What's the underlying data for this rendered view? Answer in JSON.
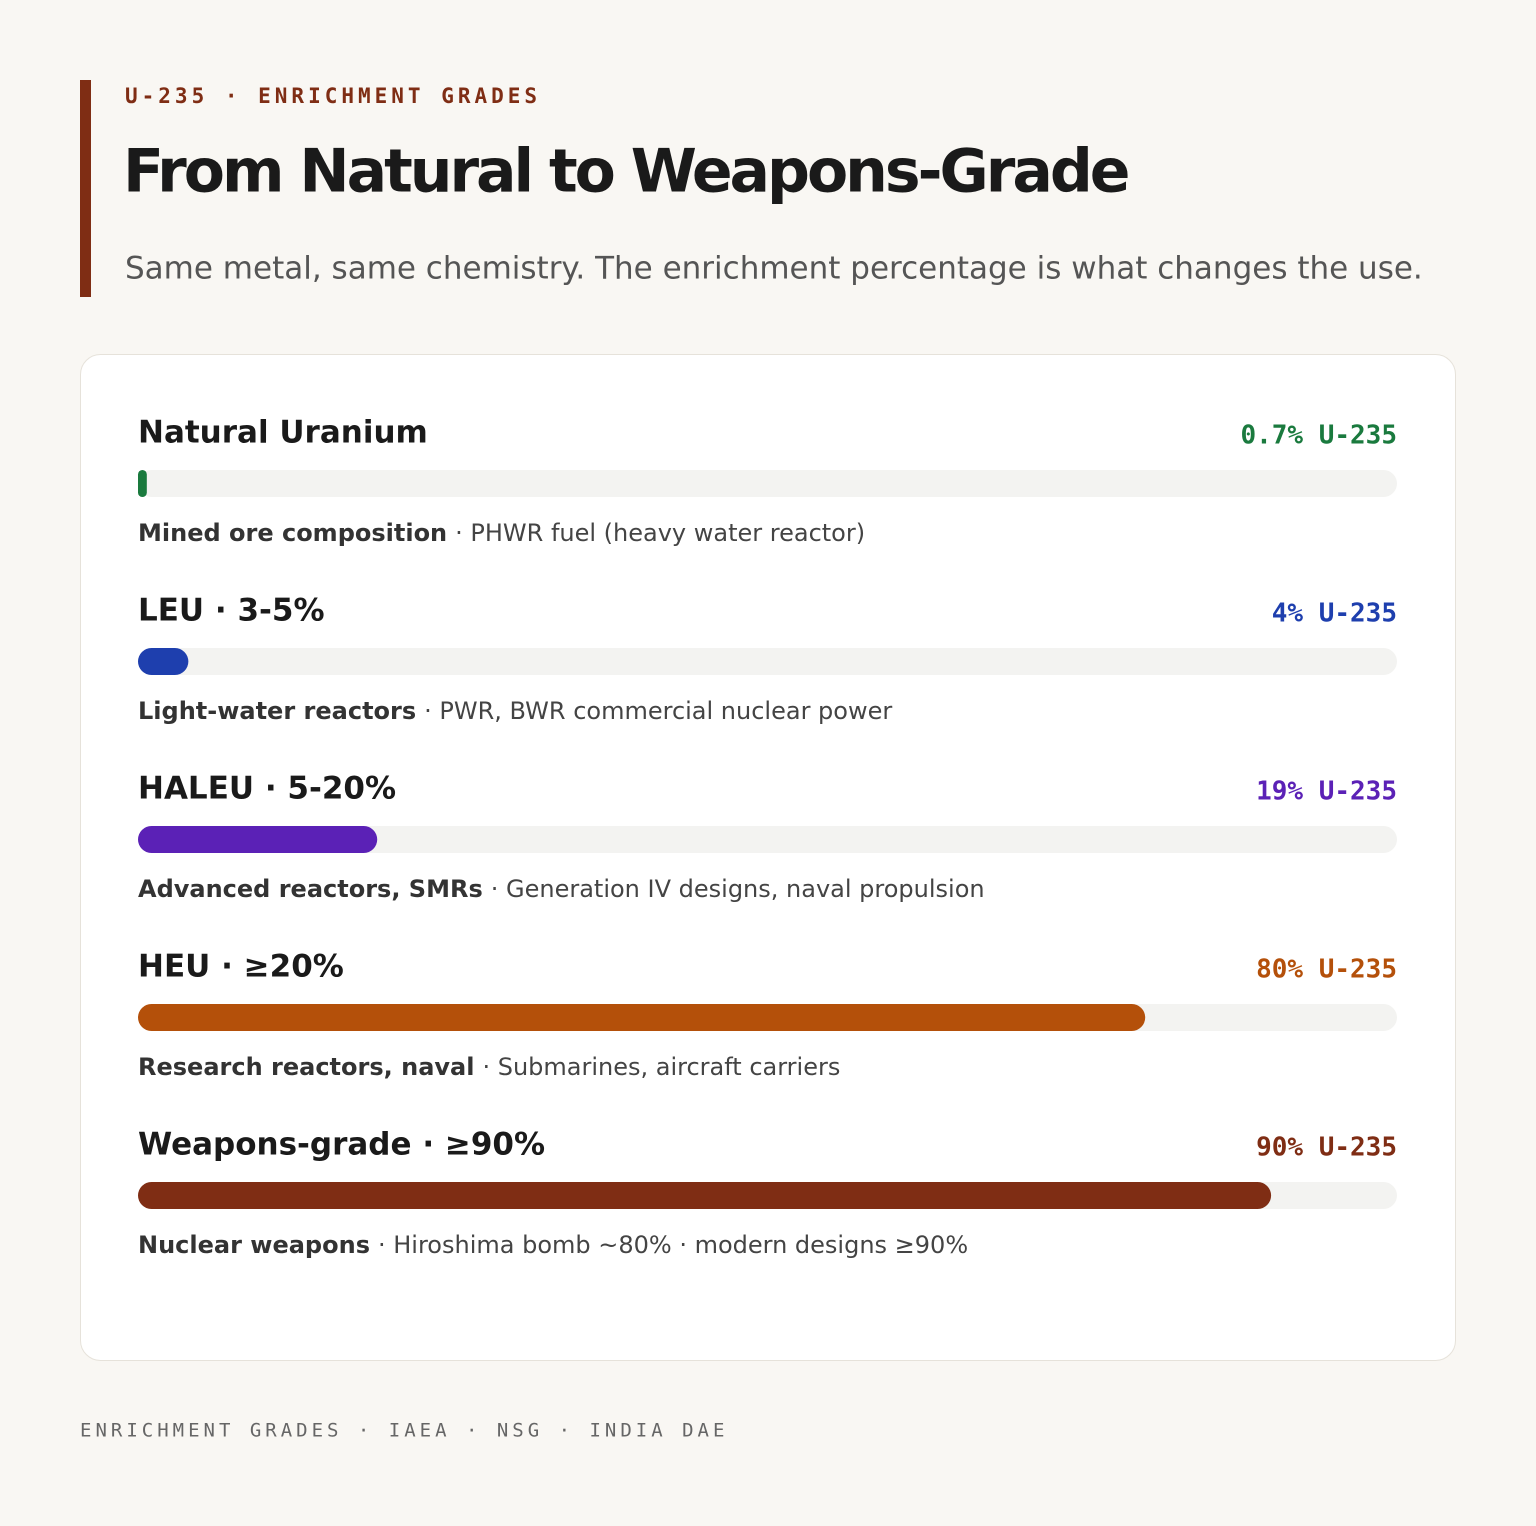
{
  "eyebrow": "U-235 · ENRICHMENT GRADES",
  "footer": "ENRICHMENT GRADES · IAEA · NSG · INDIA DAE",
  "chart_data": {
    "type": "bar",
    "title": "From Natural to Weapons-Grade",
    "subtitle": "Same metal, same chemistry. The enrichment percentage is what changes the use.",
    "orientation": "horizontal",
    "categories": [
      "Natural Uranium",
      "LEU · 3-5%",
      "HALEU · 5-20%",
      "HEU · ≥20%",
      "Weapons-grade · ≥90%"
    ],
    "values": [
      0.7,
      4,
      19,
      80,
      90
    ],
    "value_labels": [
      "0.7% U-235",
      "4% U-235",
      "19% U-235",
      "80% U-235",
      "90% U-235"
    ],
    "colors": [
      "#1a7a3e",
      "#1e3fae",
      "#5b21b6",
      "#b4500a",
      "#7f2d14"
    ],
    "descriptions": [
      {
        "lead": "Mined ore composition",
        "detail": "· PHWR fuel (heavy water reactor)"
      },
      {
        "lead": "Light-water reactors",
        "detail": "· PWR, BWR commercial nuclear power"
      },
      {
        "lead": "Advanced reactors, SMRs",
        "detail": "· Generation IV designs, naval propulsion"
      },
      {
        "lead": "Research reactors, naval",
        "detail": "· Submarines, aircraft carriers"
      },
      {
        "lead": "Nuclear weapons",
        "detail": "· Hiroshima bomb ~80% · modern designs ≥90%"
      }
    ],
    "xlim": [
      0,
      100
    ]
  }
}
